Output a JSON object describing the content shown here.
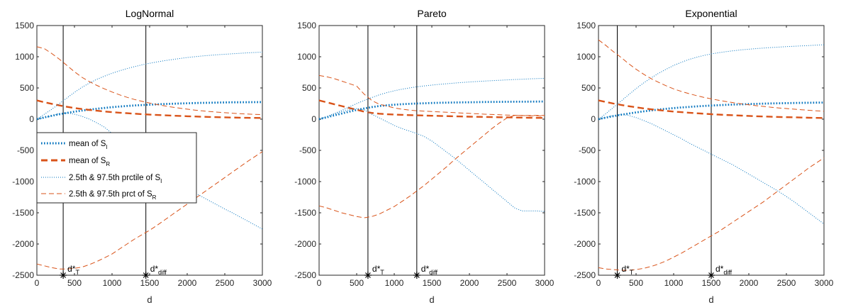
{
  "figure": {
    "legend": {
      "entries": [
        {
          "label": "mean of S",
          "sub": "I",
          "style": "mean_I"
        },
        {
          "label": "mean of S",
          "sub": "R",
          "style": "mean_R"
        },
        {
          "label": "2.5th & 97.5th prctile of S",
          "sub": "I",
          "style": "pct_I"
        },
        {
          "label": "2.5th & 97.5th prct of S",
          "sub": "R",
          "style": "pct_R"
        }
      ]
    },
    "colors": {
      "blue": "#0072BD",
      "orange": "#D95319",
      "axis": "#262626",
      "marker": "#000000"
    }
  },
  "chart_data": [
    {
      "type": "line",
      "title": "LogNormal",
      "xlabel": "d",
      "ylabel": "",
      "xlim": [
        0,
        3000
      ],
      "ylim": [
        -2500,
        1500
      ],
      "xticks": [
        0,
        500,
        1000,
        1500,
        2000,
        2500,
        3000
      ],
      "yticks": [
        -2500,
        -2000,
        -1500,
        -1000,
        -500,
        0,
        500,
        1000,
        1500
      ],
      "grid": false,
      "legend_position": "middle-left",
      "x": [
        0,
        100,
        200,
        300,
        400,
        500,
        600,
        700,
        800,
        900,
        1000,
        1100,
        1200,
        1300,
        1400,
        1500,
        1600,
        1700,
        1800,
        1900,
        2000,
        2100,
        2200,
        2300,
        2400,
        2500,
        2600,
        2700,
        2800,
        2900,
        3000
      ],
      "series": [
        {
          "name": "mean of S_I",
          "style": "mean_I",
          "values": [
            0,
            30,
            55,
            78,
            100,
            120,
            138,
            153,
            167,
            180,
            192,
            202,
            211,
            219,
            226,
            232,
            238,
            243,
            247,
            251,
            255,
            258,
            261,
            263,
            266,
            268,
            270,
            271,
            272,
            273,
            274
          ]
        },
        {
          "name": "mean of S_R",
          "style": "mean_R",
          "values": [
            300,
            270,
            245,
            220,
            198,
            178,
            162,
            148,
            135,
            123,
            112,
            103,
            95,
            87,
            80,
            73,
            67,
            62,
            57,
            52,
            47,
            43,
            39,
            35,
            32,
            29,
            26,
            24,
            22,
            20,
            18
          ]
        },
        {
          "name": "97.5th prctile of S_I",
          "style": "pct_I",
          "values": [
            0,
            80,
            160,
            250,
            340,
            430,
            510,
            580,
            640,
            690,
            735,
            775,
            810,
            842,
            870,
            895,
            917,
            937,
            955,
            972,
            987,
            1000,
            1012,
            1023,
            1032,
            1040,
            1048,
            1055,
            1062,
            1068,
            1074
          ]
        },
        {
          "name": "2.5th prctile of S_I",
          "style": "pct_I",
          "values": [
            0,
            20,
            55,
            90,
            100,
            80,
            45,
            0,
            -60,
            -130,
            -230,
            -350,
            -470,
            -580,
            -680,
            -770,
            -850,
            -920,
            -985,
            -1050,
            -1115,
            -1180,
            -1245,
            -1310,
            -1375,
            -1440,
            -1500,
            -1565,
            -1630,
            -1695,
            -1760
          ]
        },
        {
          "name": "97.5th prct of S_R",
          "style": "pct_R",
          "values": [
            1160,
            1130,
            1050,
            960,
            860,
            760,
            670,
            600,
            540,
            485,
            435,
            390,
            350,
            315,
            285,
            258,
            234,
            212,
            193,
            176,
            160,
            146,
            133,
            122,
            112,
            103,
            95,
            88,
            82,
            77,
            72
          ]
        },
        {
          "name": "2.5th prct of S_R",
          "style": "pct_R",
          "values": [
            -2320,
            -2350,
            -2380,
            -2400,
            -2400,
            -2390,
            -2370,
            -2330,
            -2280,
            -2220,
            -2160,
            -2080,
            -2000,
            -1920,
            -1850,
            -1780,
            -1700,
            -1615,
            -1530,
            -1445,
            -1360,
            -1275,
            -1190,
            -1105,
            -1020,
            -935,
            -850,
            -765,
            -680,
            -600,
            -520
          ]
        }
      ],
      "vlines": [
        350,
        1450
      ],
      "markers": [
        {
          "x": 350,
          "y": -2500,
          "label": "d*",
          "sub": "T"
        },
        {
          "x": 1450,
          "y": -2500,
          "label": "d*",
          "sub": "diff"
        }
      ]
    },
    {
      "type": "line",
      "title": "Pareto",
      "xlabel": "d",
      "ylabel": "",
      "xlim": [
        0,
        3000
      ],
      "ylim": [
        -2500,
        1500
      ],
      "xticks": [
        0,
        500,
        1000,
        1500,
        2000,
        2500,
        3000
      ],
      "yticks": [
        -2500,
        -2000,
        -1500,
        -1000,
        -500,
        0,
        500,
        1000,
        1500
      ],
      "grid": false,
      "x": [
        0,
        100,
        200,
        300,
        400,
        500,
        600,
        700,
        800,
        900,
        1000,
        1100,
        1200,
        1300,
        1400,
        1500,
        1600,
        1700,
        1800,
        1900,
        2000,
        2100,
        2200,
        2300,
        2400,
        2500,
        2600,
        2700,
        2800,
        2900,
        3000
      ],
      "series": [
        {
          "name": "mean of S_I",
          "style": "mean_I",
          "values": [
            0,
            30,
            60,
            90,
            120,
            148,
            172,
            193,
            210,
            222,
            232,
            240,
            246,
            251,
            255,
            259,
            262,
            265,
            267,
            269,
            271,
            273,
            275,
            276,
            277,
            278,
            279,
            280,
            281,
            282,
            283
          ]
        },
        {
          "name": "mean of S_R",
          "style": "mean_R",
          "values": [
            300,
            270,
            240,
            210,
            180,
            150,
            120,
            100,
            88,
            80,
            74,
            69,
            65,
            61,
            58,
            55,
            52,
            49,
            46,
            43,
            40,
            37,
            35,
            33,
            31,
            29,
            27,
            25,
            23,
            21,
            20
          ]
        },
        {
          "name": "97.5th prctile of S_I",
          "style": "pct_I",
          "values": [
            0,
            40,
            90,
            140,
            195,
            250,
            300,
            345,
            390,
            425,
            455,
            480,
            500,
            518,
            533,
            546,
            558,
            568,
            578,
            587,
            595,
            603,
            610,
            617,
            623,
            629,
            635,
            640,
            645,
            650,
            655
          ]
        },
        {
          "name": "2.5th prctile of S_I",
          "style": "pct_I",
          "values": [
            0,
            40,
            80,
            120,
            150,
            170,
            150,
            80,
            20,
            -40,
            -100,
            -150,
            -190,
            -230,
            -280,
            -350,
            -440,
            -530,
            -620,
            -720,
            -820,
            -920,
            -1020,
            -1120,
            -1220,
            -1320,
            -1420,
            -1470,
            -1470,
            -1470,
            -1480
          ]
        },
        {
          "name": "97.5th prct of S_R",
          "style": "pct_R",
          "values": [
            700,
            680,
            650,
            610,
            570,
            530,
            400,
            300,
            240,
            210,
            180,
            160,
            145,
            135,
            128,
            122,
            116,
            110,
            104,
            98,
            92,
            86,
            80,
            75,
            70,
            66,
            62,
            58,
            55,
            52,
            50
          ]
        },
        {
          "name": "2.5th prct of S_R",
          "style": "pct_R",
          "values": [
            -1390,
            -1420,
            -1460,
            -1500,
            -1530,
            -1560,
            -1580,
            -1560,
            -1520,
            -1460,
            -1400,
            -1320,
            -1240,
            -1150,
            -1060,
            -960,
            -860,
            -760,
            -650,
            -550,
            -450,
            -350,
            -250,
            -150,
            -60,
            20,
            60,
            60,
            60,
            60,
            60
          ]
        }
      ],
      "vlines": [
        650,
        1300
      ],
      "markers": [
        {
          "x": 650,
          "y": -2500,
          "label": "d*",
          "sub": "T"
        },
        {
          "x": 1300,
          "y": -2500,
          "label": "d*",
          "sub": "diff"
        }
      ]
    },
    {
      "type": "line",
      "title": "Exponential",
      "xlabel": "d",
      "ylabel": "",
      "xlim": [
        0,
        3000
      ],
      "ylim": [
        -2500,
        1500
      ],
      "xticks": [
        0,
        500,
        1000,
        1500,
        2000,
        2500,
        3000
      ],
      "yticks": [
        -2500,
        -2000,
        -1500,
        -1000,
        -500,
        0,
        500,
        1000,
        1500
      ],
      "grid": false,
      "x": [
        0,
        100,
        200,
        300,
        400,
        500,
        600,
        700,
        800,
        900,
        1000,
        1100,
        1200,
        1300,
        1400,
        1500,
        1600,
        1700,
        1800,
        1900,
        2000,
        2100,
        2200,
        2300,
        2400,
        2500,
        2600,
        2700,
        2800,
        2900,
        3000
      ],
      "series": [
        {
          "name": "mean of S_I",
          "style": "mean_I",
          "values": [
            0,
            25,
            48,
            70,
            90,
            108,
            125,
            140,
            154,
            166,
            177,
            187,
            196,
            204,
            211,
            218,
            224,
            229,
            234,
            238,
            242,
            246,
            249,
            252,
            255,
            257,
            259,
            261,
            263,
            265,
            266
          ]
        },
        {
          "name": "mean of S_R",
          "style": "mean_R",
          "values": [
            300,
            275,
            250,
            228,
            208,
            190,
            173,
            158,
            145,
            133,
            122,
            112,
            103,
            95,
            87,
            80,
            73,
            67,
            62,
            57,
            52,
            47,
            43,
            39,
            35,
            32,
            29,
            26,
            23,
            21,
            19
          ]
        },
        {
          "name": "97.5th prctile of S_I",
          "style": "pct_I",
          "values": [
            0,
            90,
            190,
            290,
            390,
            490,
            580,
            660,
            735,
            800,
            860,
            910,
            955,
            990,
            1020,
            1045,
            1065,
            1082,
            1097,
            1110,
            1121,
            1131,
            1140,
            1148,
            1155,
            1162,
            1168,
            1174,
            1180,
            1186,
            1192
          ]
        },
        {
          "name": "2.5th prctile of S_I",
          "style": "pct_I",
          "values": [
            0,
            30,
            60,
            75,
            60,
            25,
            -20,
            -70,
            -130,
            -190,
            -250,
            -310,
            -380,
            -440,
            -500,
            -560,
            -620,
            -680,
            -740,
            -810,
            -880,
            -950,
            -1020,
            -1090,
            -1160,
            -1240,
            -1320,
            -1410,
            -1500,
            -1590,
            -1680
          ]
        },
        {
          "name": "97.5th prct of S_R",
          "style": "pct_R",
          "values": [
            1270,
            1180,
            1080,
            990,
            890,
            800,
            720,
            650,
            590,
            535,
            485,
            445,
            410,
            378,
            350,
            325,
            302,
            282,
            263,
            246,
            230,
            216,
            203,
            191,
            180,
            170,
            160,
            151,
            142,
            134,
            126
          ]
        },
        {
          "name": "2.5th prct of S_R",
          "style": "pct_R",
          "values": [
            -2380,
            -2400,
            -2410,
            -2420,
            -2420,
            -2410,
            -2390,
            -2360,
            -2320,
            -2270,
            -2210,
            -2150,
            -2080,
            -2010,
            -1940,
            -1870,
            -1800,
            -1720,
            -1640,
            -1560,
            -1480,
            -1400,
            -1320,
            -1230,
            -1140,
            -1050,
            -960,
            -870,
            -780,
            -700,
            -620
          ]
        }
      ],
      "vlines": [
        250,
        1500
      ],
      "markers": [
        {
          "x": 250,
          "y": -2500,
          "label": "d*",
          "sub": "T"
        },
        {
          "x": 1500,
          "y": -2500,
          "label": "d*",
          "sub": "diff"
        }
      ]
    }
  ]
}
